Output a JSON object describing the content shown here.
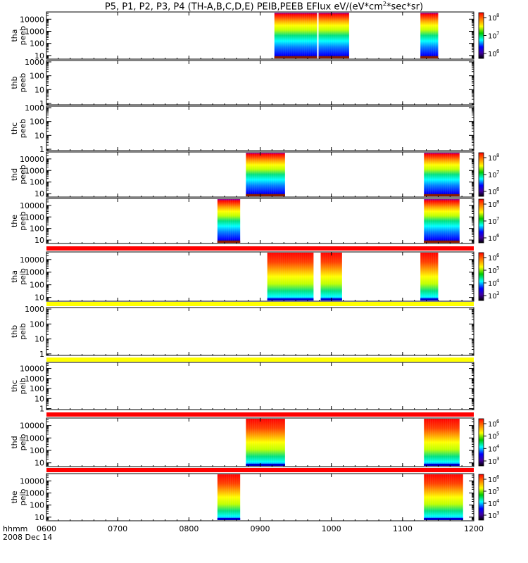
{
  "title_main": "P5, P1, P2, P3, P4 (TH-A,B,C,D,E) PEIB,PEEB EFlux eV/(eV*cm",
  "title_sup": "2",
  "title_tail": "*sec*sr)",
  "time_axis": {
    "label": "hhmm",
    "date": "2008 Dec 14",
    "ticks": [
      "0600",
      "0700",
      "0800",
      "0900",
      "1000",
      "1100",
      "1200"
    ],
    "range_hours": [
      6,
      12
    ]
  },
  "colors": {
    "stripe_red": "#ff0000",
    "stripe_yellow": "#ffff00",
    "scale": [
      "#000000",
      "#2a0088",
      "#0000ff",
      "#00a0ff",
      "#00ffff",
      "#00e080",
      "#00c800",
      "#c0ff00",
      "#ffff00",
      "#ffa000",
      "#ff4000",
      "#ff0000"
    ]
  },
  "chart_data": [
    {
      "type": "heatmap",
      "probe": "tha",
      "instrument": "peeb",
      "ylabel": [
        "tha",
        "peeb"
      ],
      "yticks": [
        "10000",
        "1000",
        "100",
        "10"
      ],
      "ylog": [
        0.7,
        4.6
      ],
      "intervals": [
        [
          9.2,
          9.8
        ],
        [
          9.82,
          10.25
        ],
        [
          11.25,
          11.5
        ]
      ],
      "scale": "electron",
      "colorbar": [
        "10",
        "8",
        "10",
        "7",
        "10",
        "6"
      ]
    },
    {
      "type": "heatmap",
      "probe": "thb",
      "instrument": "peeb",
      "ylabel": [
        "thb",
        "peeb"
      ],
      "yticks": [
        "1000",
        "100",
        "10",
        "1"
      ],
      "ylog": [
        -0.1,
        3.1
      ],
      "intervals": []
    },
    {
      "type": "heatmap",
      "probe": "thc",
      "instrument": "peeb",
      "ylabel": [
        "thc",
        "peeb"
      ],
      "yticks": [
        "1000",
        "100",
        "10",
        "1"
      ],
      "ylog": [
        -0.1,
        3.1
      ],
      "intervals": []
    },
    {
      "type": "heatmap",
      "probe": "thd",
      "instrument": "peeb",
      "ylabel": [
        "thd",
        "peeb"
      ],
      "yticks": [
        "10000",
        "1000",
        "100",
        "10"
      ],
      "ylog": [
        0.7,
        4.6
      ],
      "intervals": [
        [
          8.8,
          9.35
        ],
        [
          11.3,
          11.8
        ]
      ],
      "scale": "electron",
      "colorbar": [
        "10",
        "8",
        "10",
        "7",
        "10",
        "6"
      ]
    },
    {
      "type": "heatmap",
      "probe": "the",
      "instrument": "peeb",
      "ylabel": [
        "the",
        "peeb"
      ],
      "yticks": [
        "10000",
        "1000",
        "100",
        "10"
      ],
      "ylog": [
        0.7,
        4.6
      ],
      "intervals": [
        [
          8.4,
          8.72
        ],
        [
          11.3,
          11.8
        ]
      ],
      "scale": "electron",
      "colorbar": [
        "10",
        "8",
        "10",
        "7",
        "10",
        "6"
      ]
    },
    {
      "type": "heatmap",
      "probe": "tha",
      "instrument": "peib",
      "ylabel": [
        "tha",
        "peib"
      ],
      "yticks": [
        "10000",
        "1000",
        "100",
        "10"
      ],
      "ylog": [
        0.7,
        4.6
      ],
      "intervals": [
        [
          9.1,
          9.75
        ],
        [
          9.85,
          10.15
        ],
        [
          11.25,
          11.5
        ]
      ],
      "scale": "ion",
      "colorbar": [
        "10",
        "6",
        "10",
        "5",
        "10",
        "4",
        "10",
        "3"
      ],
      "stripe": "red"
    },
    {
      "type": "heatmap",
      "probe": "thb",
      "instrument": "peib",
      "ylabel": [
        "thb",
        "peib"
      ],
      "yticks": [
        "1000",
        "100",
        "10",
        "1"
      ],
      "ylog": [
        -0.1,
        3.1
      ],
      "intervals": [],
      "stripe": "yellow"
    },
    {
      "type": "heatmap",
      "probe": "thc",
      "instrument": "peib",
      "ylabel": [
        "thc",
        "peib"
      ],
      "yticks": [
        "10000",
        "1000",
        "100",
        "10",
        "1"
      ],
      "ylog": [
        -0.1,
        4.6
      ],
      "intervals": [],
      "stripe": "yellow"
    },
    {
      "type": "heatmap",
      "probe": "thd",
      "instrument": "peib",
      "ylabel": [
        "thd",
        "peib"
      ],
      "yticks": [
        "10000",
        "1000",
        "100",
        "10"
      ],
      "ylog": [
        0.7,
        4.6
      ],
      "intervals": [
        [
          8.8,
          9.35
        ],
        [
          11.3,
          11.8
        ]
      ],
      "scale": "ion",
      "colorbar": [
        "10",
        "6",
        "10",
        "5",
        "10",
        "4",
        "10",
        "3"
      ],
      "stripe": "red"
    },
    {
      "type": "heatmap",
      "probe": "the",
      "instrument": "peib",
      "ylabel": [
        "the",
        "peib"
      ],
      "yticks": [
        "10000",
        "1000",
        "100",
        "10"
      ],
      "ylog": [
        0.7,
        4.6
      ],
      "intervals": [
        [
          8.4,
          8.72
        ],
        [
          11.3,
          11.85
        ]
      ],
      "scale": "ion",
      "colorbar": [
        "10",
        "6",
        "10",
        "5",
        "10",
        "4",
        "10",
        "3"
      ],
      "stripe": "red"
    }
  ]
}
